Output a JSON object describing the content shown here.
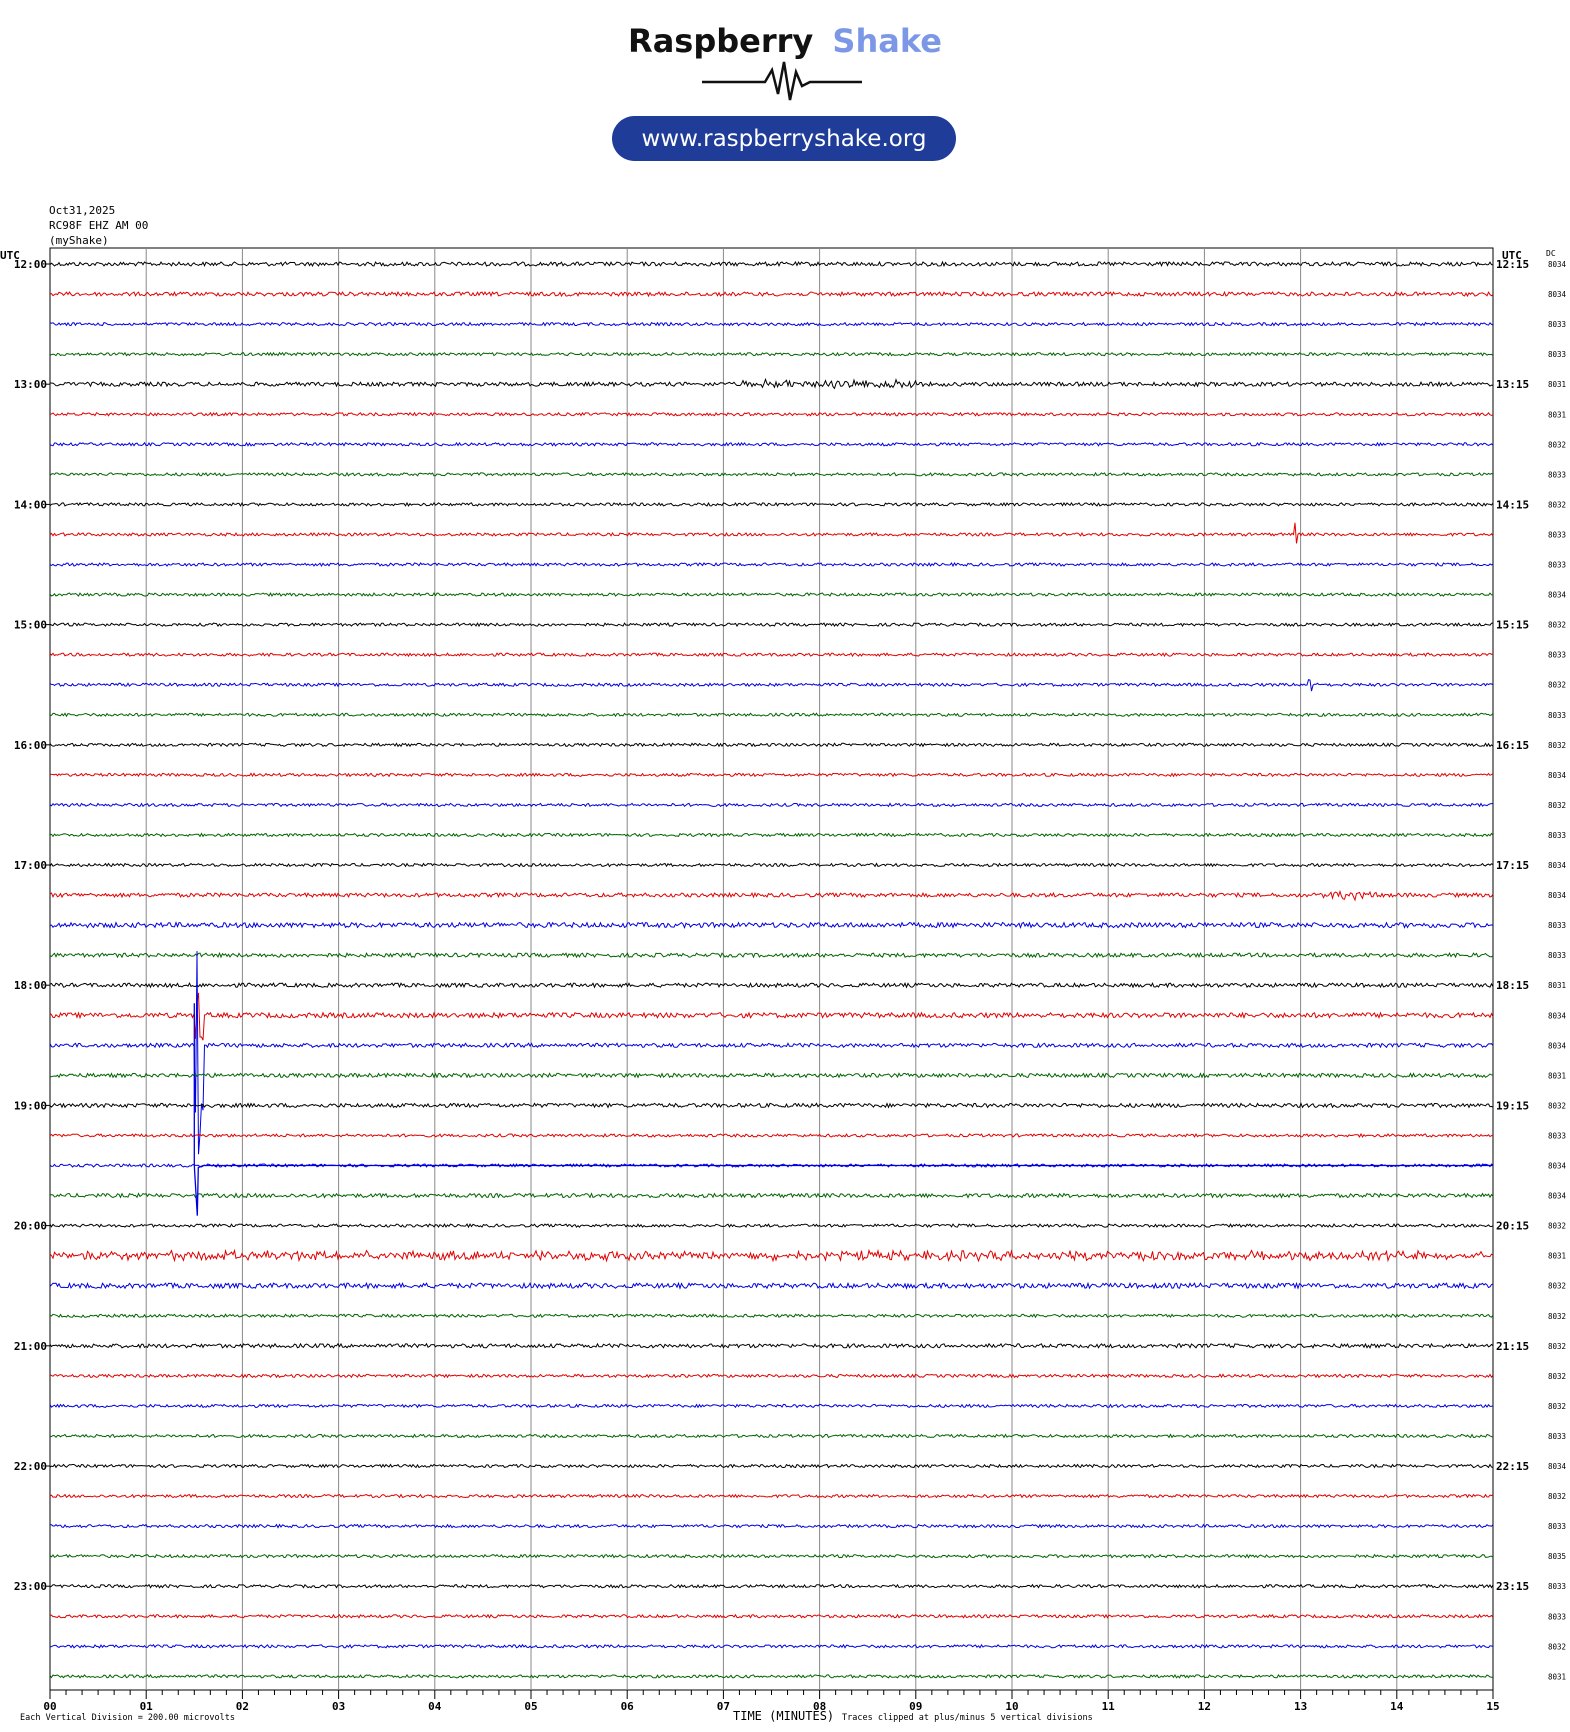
{
  "brand": {
    "name_part1": "Raspberry",
    "name_part2": "Shake",
    "url": "www.raspberryshake.org",
    "accent_color": "#7b97e6",
    "pill_color": "#1f3c99"
  },
  "header": {
    "date": "Oct31,2025",
    "station": "RC98F EHZ AM 00",
    "owner": "(myShake)"
  },
  "chart_data": {
    "type": "line",
    "title": "",
    "xlabel": "TIME (MINUTES)",
    "left_axis_label": "UTC",
    "right_axis_label": "UTC",
    "dc_label": "DC",
    "x_ticks": [
      "00",
      "01",
      "02",
      "03",
      "04",
      "05",
      "06",
      "07",
      "08",
      "09",
      "10",
      "11",
      "12",
      "13",
      "14",
      "15"
    ],
    "xlim": [
      0,
      15
    ],
    "row_colors": [
      "#000000",
      "#e00000",
      "#0000e0",
      "#006400"
    ],
    "left_hour_labels": [
      "12:00",
      "13:00",
      "14:00",
      "15:00",
      "16:00",
      "17:00",
      "18:00",
      "19:00",
      "20:00",
      "21:00",
      "22:00",
      "23:00"
    ],
    "right_hour_labels": [
      "12:15",
      "13:15",
      "14:15",
      "15:15",
      "16:15",
      "17:15",
      "18:15",
      "19:15",
      "20:15",
      "21:15",
      "22:15",
      "23:15"
    ],
    "dc_values": [
      "8034",
      "8034",
      "8033",
      "8033",
      "8031",
      "8031",
      "8032",
      "8033",
      "8032",
      "8033",
      "8033",
      "8034",
      "8032",
      "8033",
      "8032",
      "8033",
      "8032",
      "8034",
      "8032",
      "8033",
      "8034",
      "8034",
      "8033",
      "8033",
      "8031",
      "8034",
      "8034",
      "8031",
      "8032",
      "8033",
      "8034",
      "8034",
      "8032",
      "8031",
      "8032",
      "8032",
      "8032",
      "8032",
      "8032",
      "8033",
      "8034",
      "8032",
      "8033",
      "8035",
      "8033",
      "8033",
      "8032",
      "8031"
    ],
    "noise_levels": [
      2,
      2,
      1.5,
      1.5,
      2,
      1.5,
      1.5,
      1.5,
      1.5,
      1.5,
      1.5,
      1.5,
      1.5,
      1.5,
      1.5,
      1.5,
      1.5,
      1.5,
      1.5,
      1.5,
      1.5,
      2,
      2.5,
      2,
      2,
      2.5,
      2,
      2,
      2,
      1.5,
      1.5,
      2,
      1.5,
      2.5,
      2.5,
      1.5,
      2,
      1.5,
      1.5,
      1.5,
      1.5,
      1.5,
      1.5,
      1.5,
      1.5,
      1.5,
      1.5,
      1.5
    ],
    "events": [
      {
        "row": 4,
        "start_min": 7.2,
        "end_min": 9.0,
        "amplitude": 3
      },
      {
        "row": 9,
        "start_min": 12.93,
        "end_min": 12.97,
        "amplitude": 14
      },
      {
        "row": 14,
        "start_min": 13.08,
        "end_min": 13.12,
        "amplitude": 7
      },
      {
        "row": 21,
        "start_min": 13.2,
        "end_min": 13.8,
        "amplitude": 3
      },
      {
        "row": 25,
        "start_min": 1.5,
        "end_min": 1.6,
        "amplitude": 28
      },
      {
        "row": 26,
        "start_min": 1.5,
        "end_min": 1.6,
        "amplitude": 110
      },
      {
        "row": 33,
        "start_min": 0.0,
        "end_min": 15.0,
        "amplitude": 3
      }
    ],
    "footer_left": "Each Vertical Division =  200.00 microvolts",
    "footer_right": "Traces clipped at plus/minus 5 vertical divisions"
  }
}
